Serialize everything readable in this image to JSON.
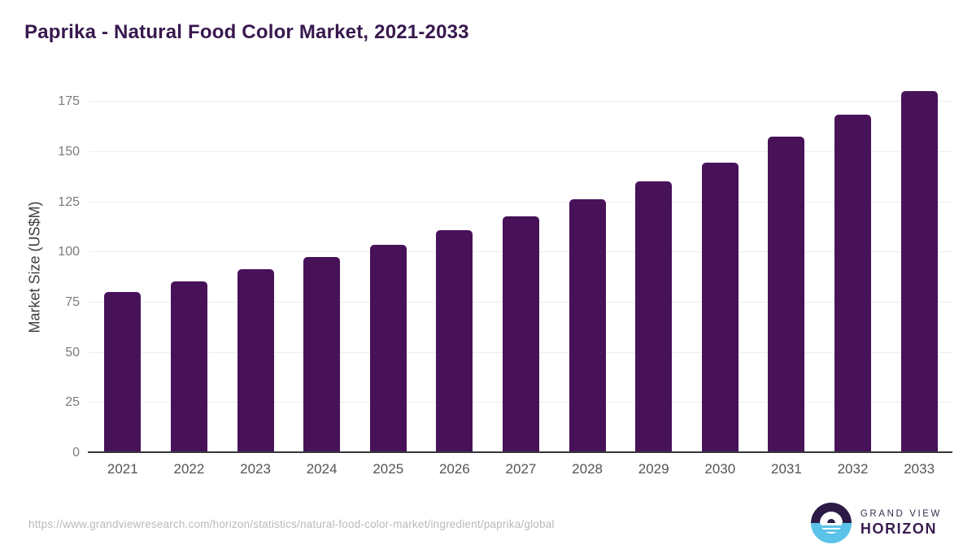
{
  "title": "Paprika - Natural Food Color Market, 2021-2033",
  "chart_data": {
    "type": "bar",
    "categories": [
      "2021",
      "2022",
      "2023",
      "2024",
      "2025",
      "2026",
      "2027",
      "2028",
      "2029",
      "2030",
      "2031",
      "2032",
      "2033"
    ],
    "values": [
      80.3,
      85.7,
      91.5,
      97.6,
      103.9,
      111.0,
      118.2,
      126.5,
      135.4,
      144.9,
      157.9,
      168.7,
      180.3
    ],
    "title": "Paprika - Natural Food Color Market, 2021-2033",
    "xlabel": "",
    "ylabel": "Market Size (US$M)",
    "ylim": [
      0,
      185.3
    ],
    "yticks": [
      0,
      25,
      50,
      75,
      100,
      125,
      150,
      175
    ],
    "grid": "horizontal",
    "legend": "none",
    "bar_color": "#481259"
  },
  "colors": {
    "bar": "#481259",
    "title_text": "#38184e",
    "gridline": "#ececec",
    "axis_line": "#37373a",
    "ytick_text": "#7b7b7b",
    "xtick_text": "#545454",
    "url_text": "#bababa",
    "logo_purple": "#2d1a47",
    "logo_blue": "#5bc2e9"
  },
  "footer": {
    "source_url": "https://www.grandviewresearch.com/horizon/statistics/natural-food-color-market/ingredient/paprika/global",
    "logo": {
      "line1": "GRAND VIEW",
      "line2": "HORIZON"
    }
  }
}
